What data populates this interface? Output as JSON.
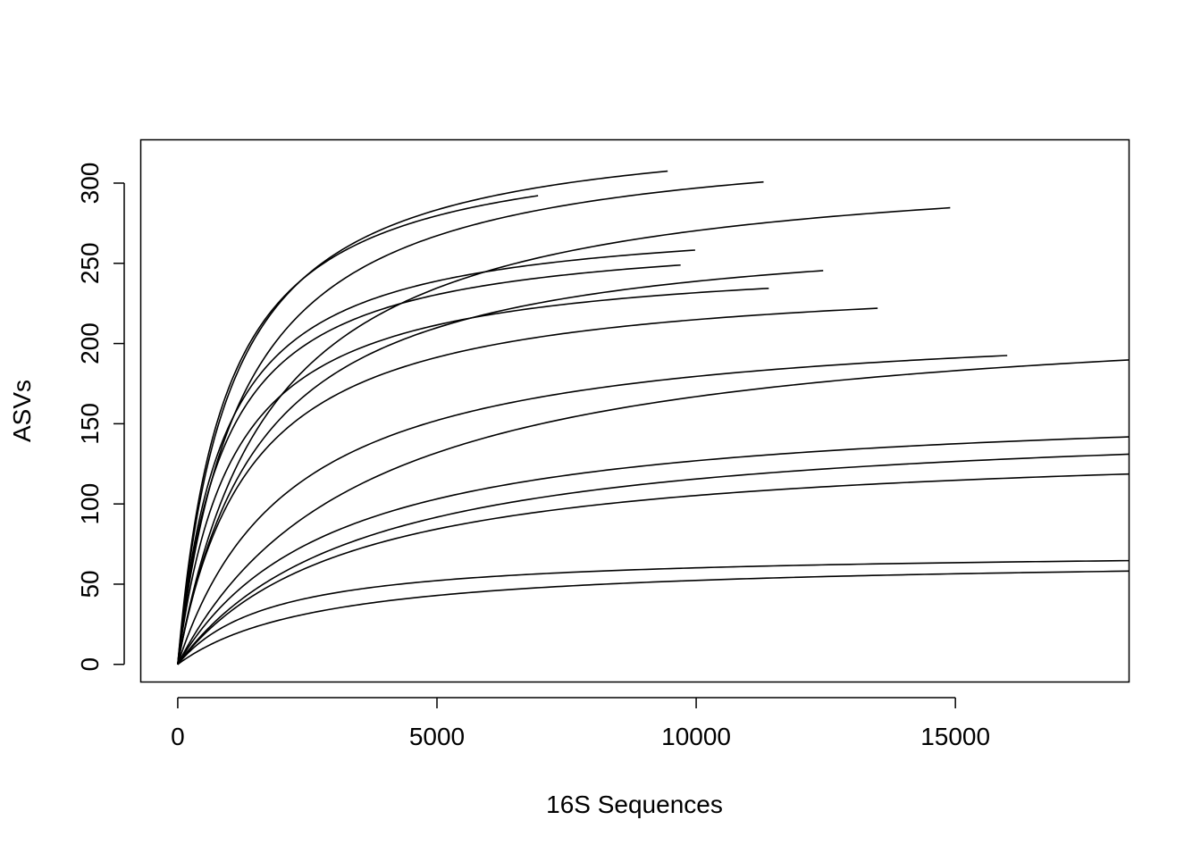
{
  "chart_data": {
    "type": "line",
    "title": "",
    "xlabel": "16S Sequences",
    "ylabel": "ASVs",
    "xlim": [
      -714,
      18350
    ],
    "ylim": [
      -11,
      327
    ],
    "xticks": [
      0,
      5000,
      10000,
      15000
    ],
    "xtick_labels": [
      "0",
      "5000",
      "10000",
      "15000"
    ],
    "yticks": [
      0,
      50,
      100,
      150,
      200,
      250,
      300
    ],
    "ytick_labels": [
      "0",
      "50",
      "100",
      "150",
      "200",
      "250",
      "300"
    ],
    "grid": false,
    "legend": "none",
    "line_color": "#000000",
    "curve_model": "y = A * x / (K + x)",
    "series": [
      {
        "A": 330,
        "K": 900,
        "max_x": 6950
      },
      {
        "A": 340,
        "K": 1000,
        "max_x": 9450
      },
      {
        "A": 334,
        "K": 1250,
        "max_x": 11300
      },
      {
        "A": 281,
        "K": 880,
        "max_x": 9980
      },
      {
        "A": 272,
        "K": 900,
        "max_x": 9700
      },
      {
        "A": 256,
        "K": 1050,
        "max_x": 11400
      },
      {
        "A": 319,
        "K": 1800,
        "max_x": 14900
      },
      {
        "A": 277,
        "K": 1600,
        "max_x": 12450
      },
      {
        "A": 245,
        "K": 1400,
        "max_x": 13500
      },
      {
        "A": 219,
        "K": 2200,
        "max_x": 16000
      },
      {
        "A": 227,
        "K": 3600,
        "max_x": 18350
      },
      {
        "A": 165,
        "K": 3000,
        "max_x": 18350
      },
      {
        "A": 156,
        "K": 3500,
        "max_x": 18350
      },
      {
        "A": 140,
        "K": 3300,
        "max_x": 18350
      },
      {
        "A": 71,
        "K": 1800,
        "max_x": 18350
      },
      {
        "A": 67,
        "K": 2800,
        "max_x": 18350
      }
    ]
  }
}
